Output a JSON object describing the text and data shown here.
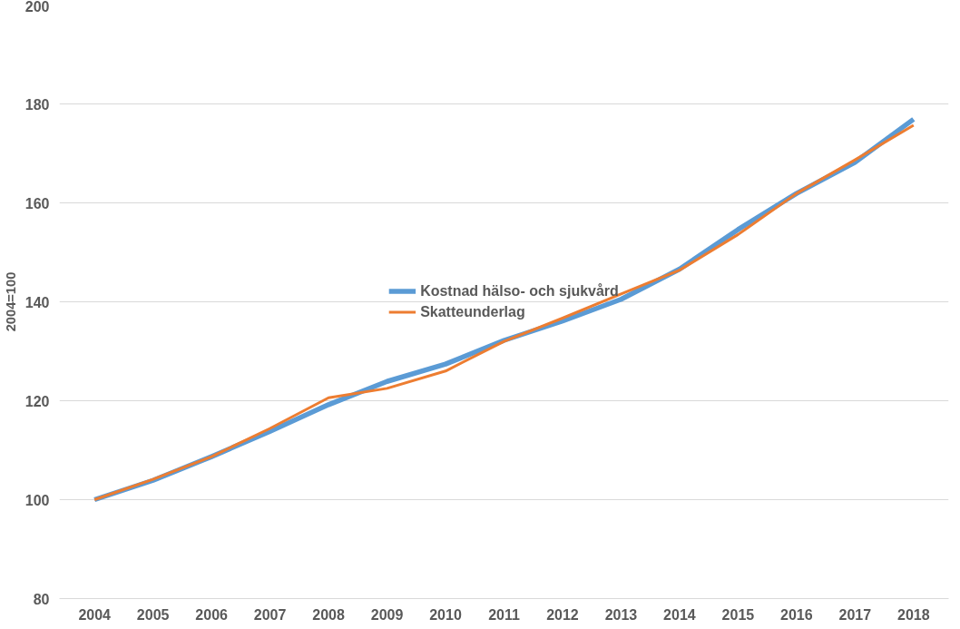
{
  "chart_data": {
    "type": "line",
    "ylabel": "2004=100",
    "categories": [
      "2004",
      "2005",
      "2006",
      "2007",
      "2008",
      "2009",
      "2010",
      "2011",
      "2012",
      "2013",
      "2014",
      "2015",
      "2016",
      "2017",
      "2018"
    ],
    "series": [
      {
        "name": "Kostnad hälso- och sjukvård",
        "color": "#5b9bd5",
        "values": [
          100,
          103.9,
          108.7,
          113.8,
          119.2,
          123.9,
          127.4,
          132.2,
          136.1,
          140.5,
          146.6,
          154.6,
          161.9,
          168.2,
          176.9
        ]
      },
      {
        "name": "Skatteunderlag",
        "color": "#ed7d31",
        "values": [
          100,
          104.1,
          108.7,
          114.4,
          120.6,
          122.5,
          126,
          132,
          136.7,
          141.6,
          146.4,
          153.6,
          161.9,
          168.7,
          175.7
        ]
      }
    ],
    "ylim": [
      80,
      200
    ],
    "yticks": [
      80,
      100,
      120,
      140,
      160,
      180,
      200
    ],
    "grid": "y",
    "legend": "center",
    "marker": "none",
    "line_style": "solid"
  }
}
